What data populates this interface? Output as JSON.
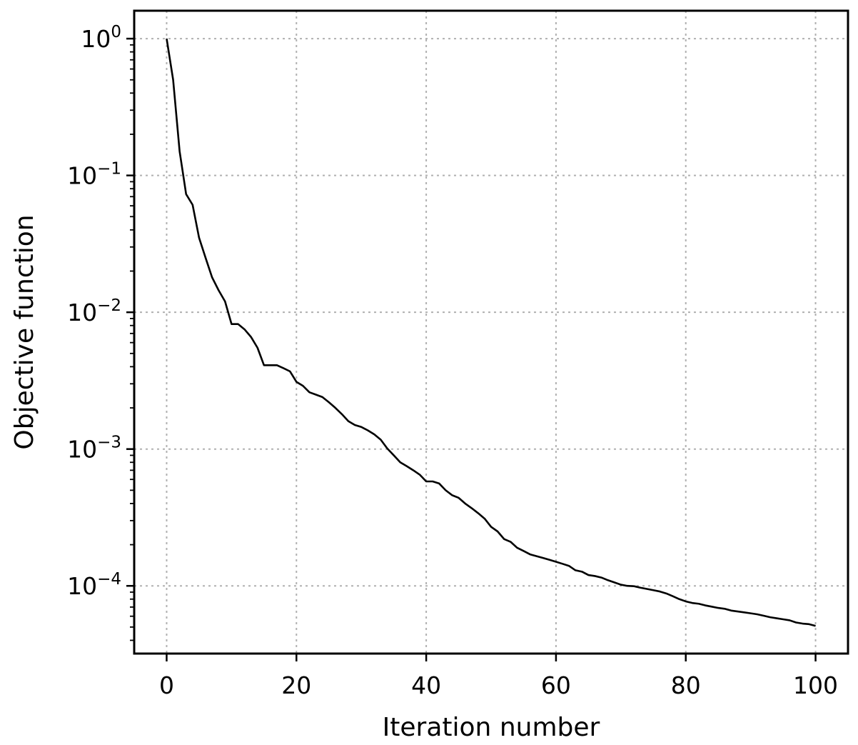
{
  "chart_data": {
    "type": "line",
    "title": "",
    "xlabel": "Iteration number",
    "ylabel": "Objective function",
    "xlim": [
      -5,
      105
    ],
    "ylim": [
      3.2e-05,
      1.6
    ],
    "yscale": "log",
    "grid": true,
    "grid_style": "dotted",
    "legend": "none",
    "line_color": "#000000",
    "x_ticks": [
      0,
      20,
      40,
      60,
      80,
      100
    ],
    "x_tick_labels": [
      "0",
      "20",
      "40",
      "60",
      "80",
      "100"
    ],
    "y_ticks": [
      1,
      0.1,
      0.01,
      0.001,
      0.0001
    ],
    "y_tick_labels": [
      {
        "base": "10",
        "exp": "0"
      },
      {
        "base": "10",
        "exp": "−1"
      },
      {
        "base": "10",
        "exp": "−2"
      },
      {
        "base": "10",
        "exp": "−3"
      },
      {
        "base": "10",
        "exp": "−4"
      }
    ],
    "x": [
      0,
      1,
      2,
      3,
      4,
      5,
      6,
      7,
      8,
      9,
      10,
      11,
      12,
      13,
      14,
      15,
      16,
      17,
      18,
      19,
      20,
      21,
      22,
      23,
      24,
      25,
      26,
      27,
      28,
      29,
      30,
      31,
      32,
      33,
      34,
      35,
      36,
      37,
      38,
      39,
      40,
      41,
      42,
      43,
      44,
      45,
      46,
      47,
      48,
      49,
      50,
      51,
      52,
      53,
      54,
      55,
      56,
      57,
      58,
      59,
      60,
      61,
      62,
      63,
      64,
      65,
      66,
      67,
      68,
      69,
      70,
      71,
      72,
      73,
      74,
      75,
      76,
      77,
      78,
      79,
      80,
      81,
      82,
      83,
      84,
      85,
      86,
      87,
      88,
      89,
      90,
      91,
      92,
      93,
      94,
      95,
      96,
      97,
      98,
      99,
      100
    ],
    "values": [
      1.0,
      0.5,
      0.15,
      0.073,
      0.061,
      0.035,
      0.025,
      0.018,
      0.0145,
      0.012,
      0.0082,
      0.0082,
      0.0075,
      0.0066,
      0.0055,
      0.0041,
      0.0041,
      0.0041,
      0.0039,
      0.0037,
      0.0031,
      0.0029,
      0.0026,
      0.0025,
      0.0024,
      0.0022,
      0.002,
      0.0018,
      0.0016,
      0.0015,
      0.00145,
      0.00137,
      0.00128,
      0.00117,
      0.00101,
      0.0009,
      0.0008,
      0.00075,
      0.0007,
      0.00065,
      0.00058,
      0.00058,
      0.00056,
      0.0005,
      0.00046,
      0.00044,
      0.0004,
      0.00037,
      0.00034,
      0.00031,
      0.00027,
      0.00025,
      0.00022,
      0.00021,
      0.00019,
      0.00018,
      0.00017,
      0.000165,
      0.00016,
      0.000155,
      0.00015,
      0.000145,
      0.00014,
      0.00013,
      0.000127,
      0.00012,
      0.000118,
      0.000115,
      0.00011,
      0.000106,
      0.000102,
      0.0001,
      9.95e-05,
      9.7e-05,
      9.5e-05,
      9.3e-05,
      9.1e-05,
      8.8e-05,
      8.4e-05,
      8e-05,
      7.7e-05,
      7.5e-05,
      7.4e-05,
      7.2e-05,
      7.05e-05,
      6.9e-05,
      6.8e-05,
      6.6e-05,
      6.5e-05,
      6.4e-05,
      6.3e-05,
      6.2e-05,
      6.05e-05,
      5.9e-05,
      5.8e-05,
      5.7e-05,
      5.6e-05,
      5.4e-05,
      5.3e-05,
      5.25e-05,
      5.1e-05
    ]
  }
}
